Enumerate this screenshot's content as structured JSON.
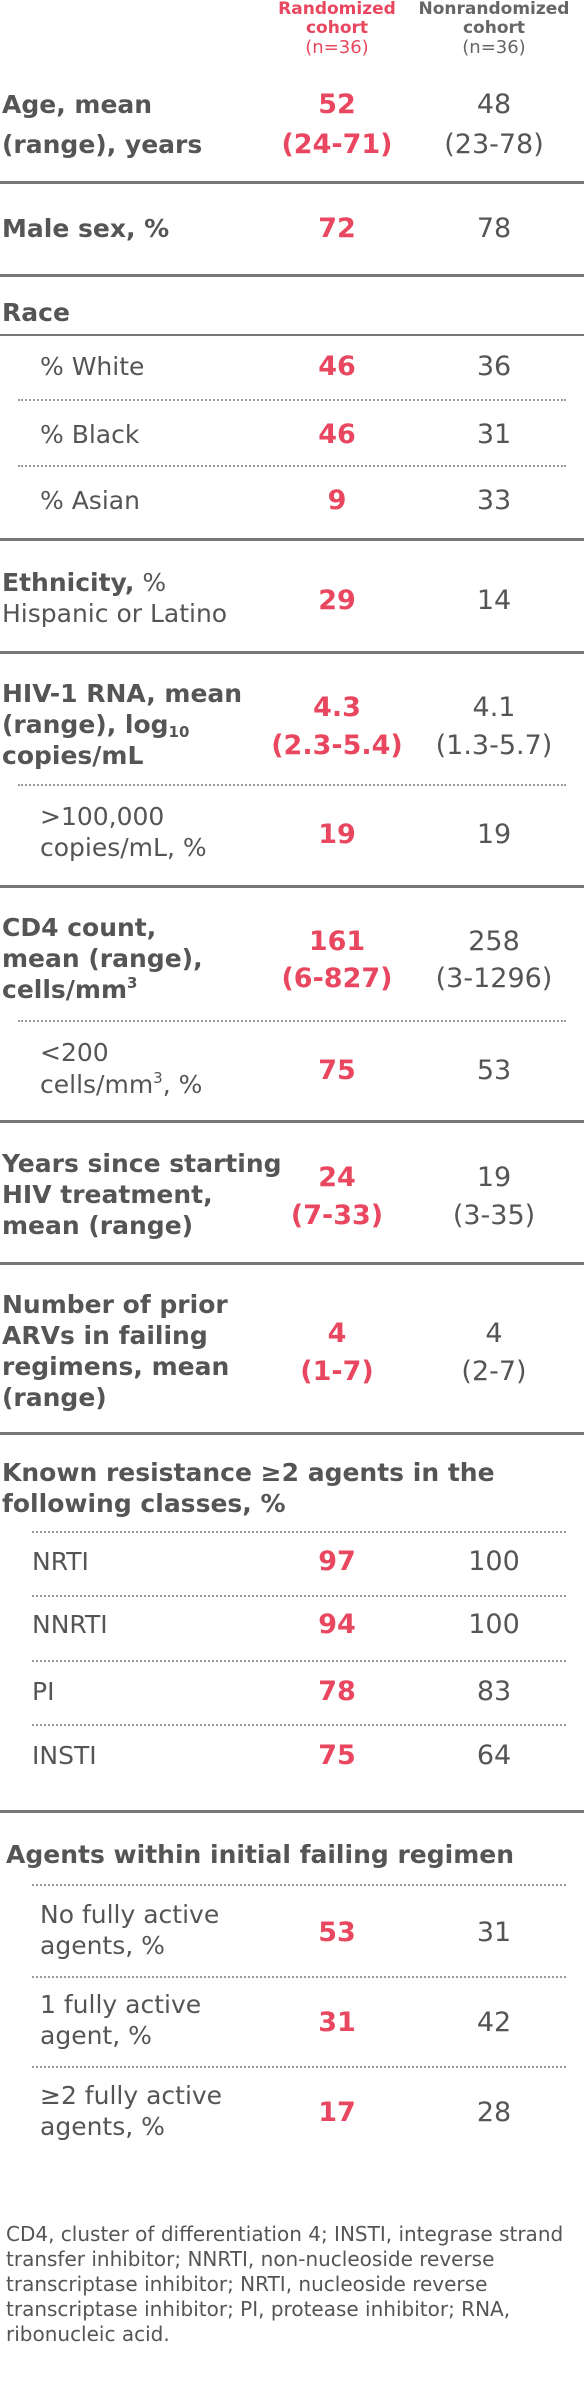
{
  "header": {
    "randomized": {
      "line1": "Randomized",
      "line2": "cohort",
      "n": "(n=36)"
    },
    "nonrandomized": {
      "line1": "Nonrandomized",
      "line2": "cohort",
      "n": "(n=36)"
    }
  },
  "rows": {
    "age": {
      "label1": "Age, mean",
      "label2": "(range), years",
      "r1": "52",
      "r2": "(24-71)",
      "n1": "48",
      "n2": "(23-78)"
    },
    "male": {
      "label": "Male sex, %",
      "r": "72",
      "n": "78"
    },
    "race": {
      "label": "Race"
    },
    "white": {
      "label": "% White",
      "r": "46",
      "n": "36"
    },
    "black": {
      "label": "% Black",
      "r": "46",
      "n": "31"
    },
    "asian": {
      "label": "% Asian",
      "r": "9",
      "n": "33"
    },
    "ethnicity": {
      "label1a": "Ethnicity,",
      "label1b": " %",
      "label2": "Hispanic or Latino",
      "r": "29",
      "n": "14"
    },
    "hiv_rna": {
      "label1": "HIV-1 RNA, mean",
      "label2a": "(range), log",
      "label2sub": "10",
      "label3": "copies/mL",
      "r1": "4.3",
      "r2": "(2.3-5.4)",
      "n1": "4.1",
      "n2": "(1.3-5.7)"
    },
    "hiv_100k": {
      "label1": ">100,000",
      "label2": "copies/mL, %",
      "r": "19",
      "n": "19"
    },
    "cd4": {
      "label1": "CD4 count,",
      "label2": "mean (range),",
      "label3a": "cells/mm",
      "label3sup": "3",
      "r1": "161",
      "r2": "(6-827)",
      "n1": "258",
      "n2": "(3-1296)"
    },
    "cd4_200": {
      "label1": "<200",
      "label2a": "cells/mm",
      "label2sup": "3",
      "label2b": ", %",
      "r": "75",
      "n": "53"
    },
    "years": {
      "label1": "Years since starting",
      "label2": "HIV treatment,",
      "label3": "mean (range)",
      "r1": "24",
      "r2": "(7-33)",
      "n1": "19",
      "n2": "(3-35)"
    },
    "prior": {
      "label1": "Number of prior",
      "label2": "ARVs in failing",
      "label3": "regimens, mean",
      "label4": "(range)",
      "r1": "4",
      "r2": "(1-7)",
      "n1": "4",
      "n2": "(2-7)"
    },
    "resistance": {
      "label1": "Known resistance ≥2 agents in the",
      "label2": "following classes, %"
    },
    "nrti": {
      "label": "NRTI",
      "r": "97",
      "n": "100"
    },
    "nnrti": {
      "label": "NNRTI",
      "r": "94",
      "n": "100"
    },
    "pi": {
      "label": "PI",
      "r": "78",
      "n": "83"
    },
    "insti": {
      "label": "INSTI",
      "r": "75",
      "n": "64"
    },
    "agents": {
      "label": "Agents within initial failing regimen"
    },
    "no_active": {
      "label1": "No fully active",
      "label2": "agents, %",
      "r": "53",
      "n": "31"
    },
    "one_active": {
      "label1": "1 fully active",
      "label2": "agent, %",
      "r": "31",
      "n": "42"
    },
    "two_active": {
      "label1": "≥2 fully active",
      "label2": "agents, %",
      "r": "17",
      "n": "28"
    }
  },
  "footnote": "CD4, cluster of differentiation 4; INSTI, integrase strand transfer inhibitor; NNRTI, non-nucleoside reverse transcriptase inhibitor; NRTI, nucleoside reverse transcriptase inhibitor; PI, protease inhibitor; RNA, ribonucleic acid.",
  "colors": {
    "accent": "#e8475f",
    "text": "#555555",
    "rule": "#777777"
  }
}
